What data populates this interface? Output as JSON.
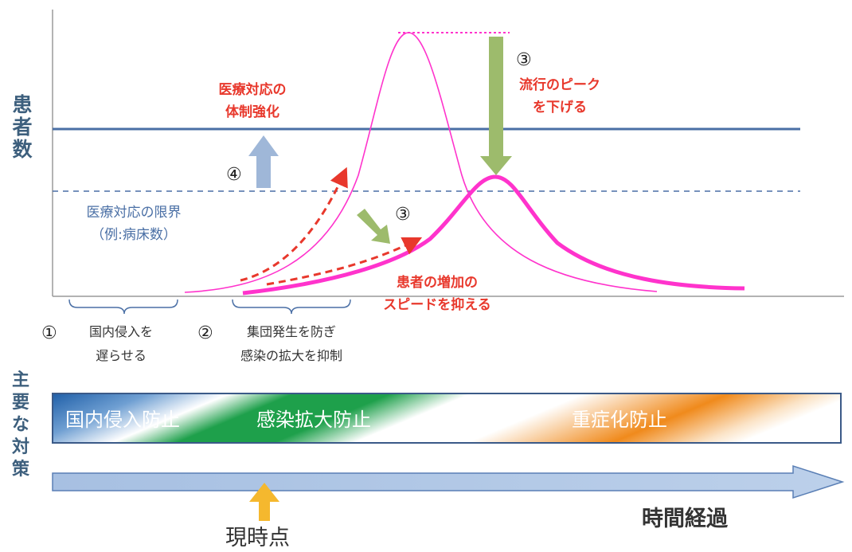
{
  "y_axis_label": "患者数",
  "limit_label": [
    "医療対応の限界",
    "（例:病床数）"
  ],
  "strengthen_label": [
    "医療対応の",
    "体制強化"
  ],
  "peak_label": [
    "流行のピーク",
    "を下げる"
  ],
  "increase_label": [
    "患者の増加の",
    "スピードを抑える"
  ],
  "circle_1": "①",
  "circle_2": "②",
  "circle_3a": "③",
  "circle_3b": "③",
  "circle_4": "④",
  "phase1_label": [
    "国内侵入を",
    "遅らせる"
  ],
  "phase2_label": [
    "集団発生を防ぎ",
    "感染の拡大を抑制"
  ],
  "measures_title": "主要な対策",
  "band_labels": [
    "国内侵入防止",
    "感染拡大防止",
    "重症化防止"
  ],
  "time_label": "時間経過",
  "now_label": "現時点",
  "colors": {
    "navy": "#4a6fa5",
    "red": "#e8382c",
    "pink": "#ff33cc",
    "green_arrow": "#9dbb6c",
    "blue_arrow": "#9fb7d8",
    "gold_arrow": "#f5b82e",
    "band_blue": "#1f5fa8",
    "band_green": "#1ea04b",
    "band_orange": "#f08a1c"
  }
}
